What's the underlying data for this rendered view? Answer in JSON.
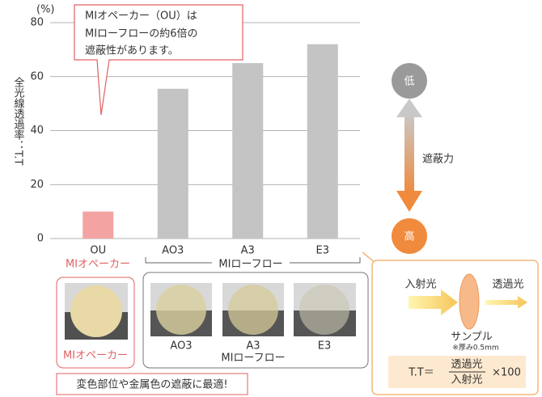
{
  "chart_data": {
    "type": "bar",
    "y_unit": "(%)",
    "y_label": "全光線透過率：T.T",
    "categories": [
      "OU",
      "AO3",
      "A3",
      "E3"
    ],
    "values": [
      10,
      55.5,
      65,
      72
    ],
    "colors": [
      "#f4a3a3",
      "#c4c4c4",
      "#c4c4c4",
      "#c4c4c4"
    ],
    "ylim": [
      0,
      80
    ],
    "yticks": [
      0,
      20,
      40,
      60,
      80
    ],
    "grid": true,
    "callout": [
      "MIオペーカー（OU）は",
      "MIローフローの約6倍の",
      "遮蔽性があります。"
    ],
    "group_labels": [
      "MIオペーカー",
      "MIローフロー"
    ]
  },
  "shielding_scale": {
    "low": "低",
    "label": "遮蔽力",
    "high": "高"
  },
  "samples": {
    "opaque_label": "MIオペーカー",
    "lowflow_items": [
      "AO3",
      "A3",
      "E3"
    ],
    "lowflow_label": "MIローフロー",
    "note": "変色部位や金属色の遮蔽に最適!"
  },
  "measurement": {
    "incident": "入射光",
    "transmitted": "透過光",
    "sample": "サンプル",
    "thickness": "※厚み0.5mm",
    "formula_lhs": "T.T＝",
    "numerator": "透過光",
    "denominator": "入射光",
    "formula_rhs": "×100"
  }
}
